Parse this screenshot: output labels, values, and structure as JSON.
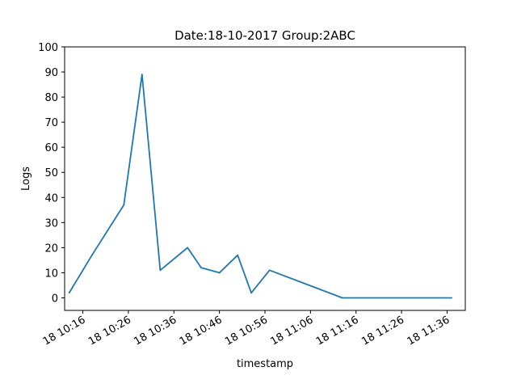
{
  "chart_data": {
    "type": "line",
    "title": "Date:18-10-2017  Group:2ABC",
    "xlabel": "timestamp",
    "ylabel": "Logs",
    "ylim": [
      -5,
      100
    ],
    "yticks": [
      0,
      10,
      20,
      30,
      40,
      50,
      60,
      70,
      80,
      90,
      100
    ],
    "xlim": [
      "2017-10-18 10:12",
      "2017-10-18 11:40"
    ],
    "xticks": [
      {
        "time": "2017-10-18 10:16",
        "label": "18 10:16"
      },
      {
        "time": "2017-10-18 10:26",
        "label": "18 10:26"
      },
      {
        "time": "2017-10-18 10:36",
        "label": "18 10:36"
      },
      {
        "time": "2017-10-18 10:46",
        "label": "18 10:46"
      },
      {
        "time": "2017-10-18 10:56",
        "label": "18 10:56"
      },
      {
        "time": "2017-10-18 11:06",
        "label": "18 11:06"
      },
      {
        "time": "2017-10-18 11:16",
        "label": "18 11:16"
      },
      {
        "time": "2017-10-18 11:26",
        "label": "18 11:26"
      },
      {
        "time": "2017-10-18 11:36",
        "label": "18 11:36"
      }
    ],
    "grid": false,
    "series": [
      {
        "color": "#1f77b4",
        "points": [
          {
            "x": "2017-10-18 10:13",
            "y": 2
          },
          {
            "x": "2017-10-18 10:18",
            "y": 17
          },
          {
            "x": "2017-10-18 10:25",
            "y": 37
          },
          {
            "x": "2017-10-18 10:29",
            "y": 89
          },
          {
            "x": "2017-10-18 10:33",
            "y": 11
          },
          {
            "x": "2017-10-18 10:39",
            "y": 20
          },
          {
            "x": "2017-10-18 10:42",
            "y": 12
          },
          {
            "x": "2017-10-18 10:46",
            "y": 10
          },
          {
            "x": "2017-10-18 10:50",
            "y": 17
          },
          {
            "x": "2017-10-18 10:53",
            "y": 2
          },
          {
            "x": "2017-10-18 10:57",
            "y": 11
          },
          {
            "x": "2017-10-18 11:13",
            "y": 0
          },
          {
            "x": "2017-10-18 11:37",
            "y": 0
          }
        ]
      }
    ]
  }
}
